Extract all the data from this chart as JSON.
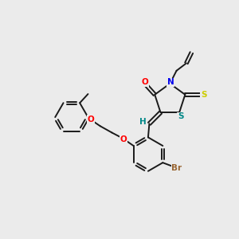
{
  "background_color": "#ebebeb",
  "bond_color": "#1a1a1a",
  "atom_colors": {
    "O": "#ff0000",
    "N": "#0000ee",
    "S_thioxo": "#cccc00",
    "S_ring": "#008888",
    "Br": "#996633",
    "H": "#008888",
    "C": "#1a1a1a"
  },
  "lw": 1.4,
  "fontsize": 7.5
}
